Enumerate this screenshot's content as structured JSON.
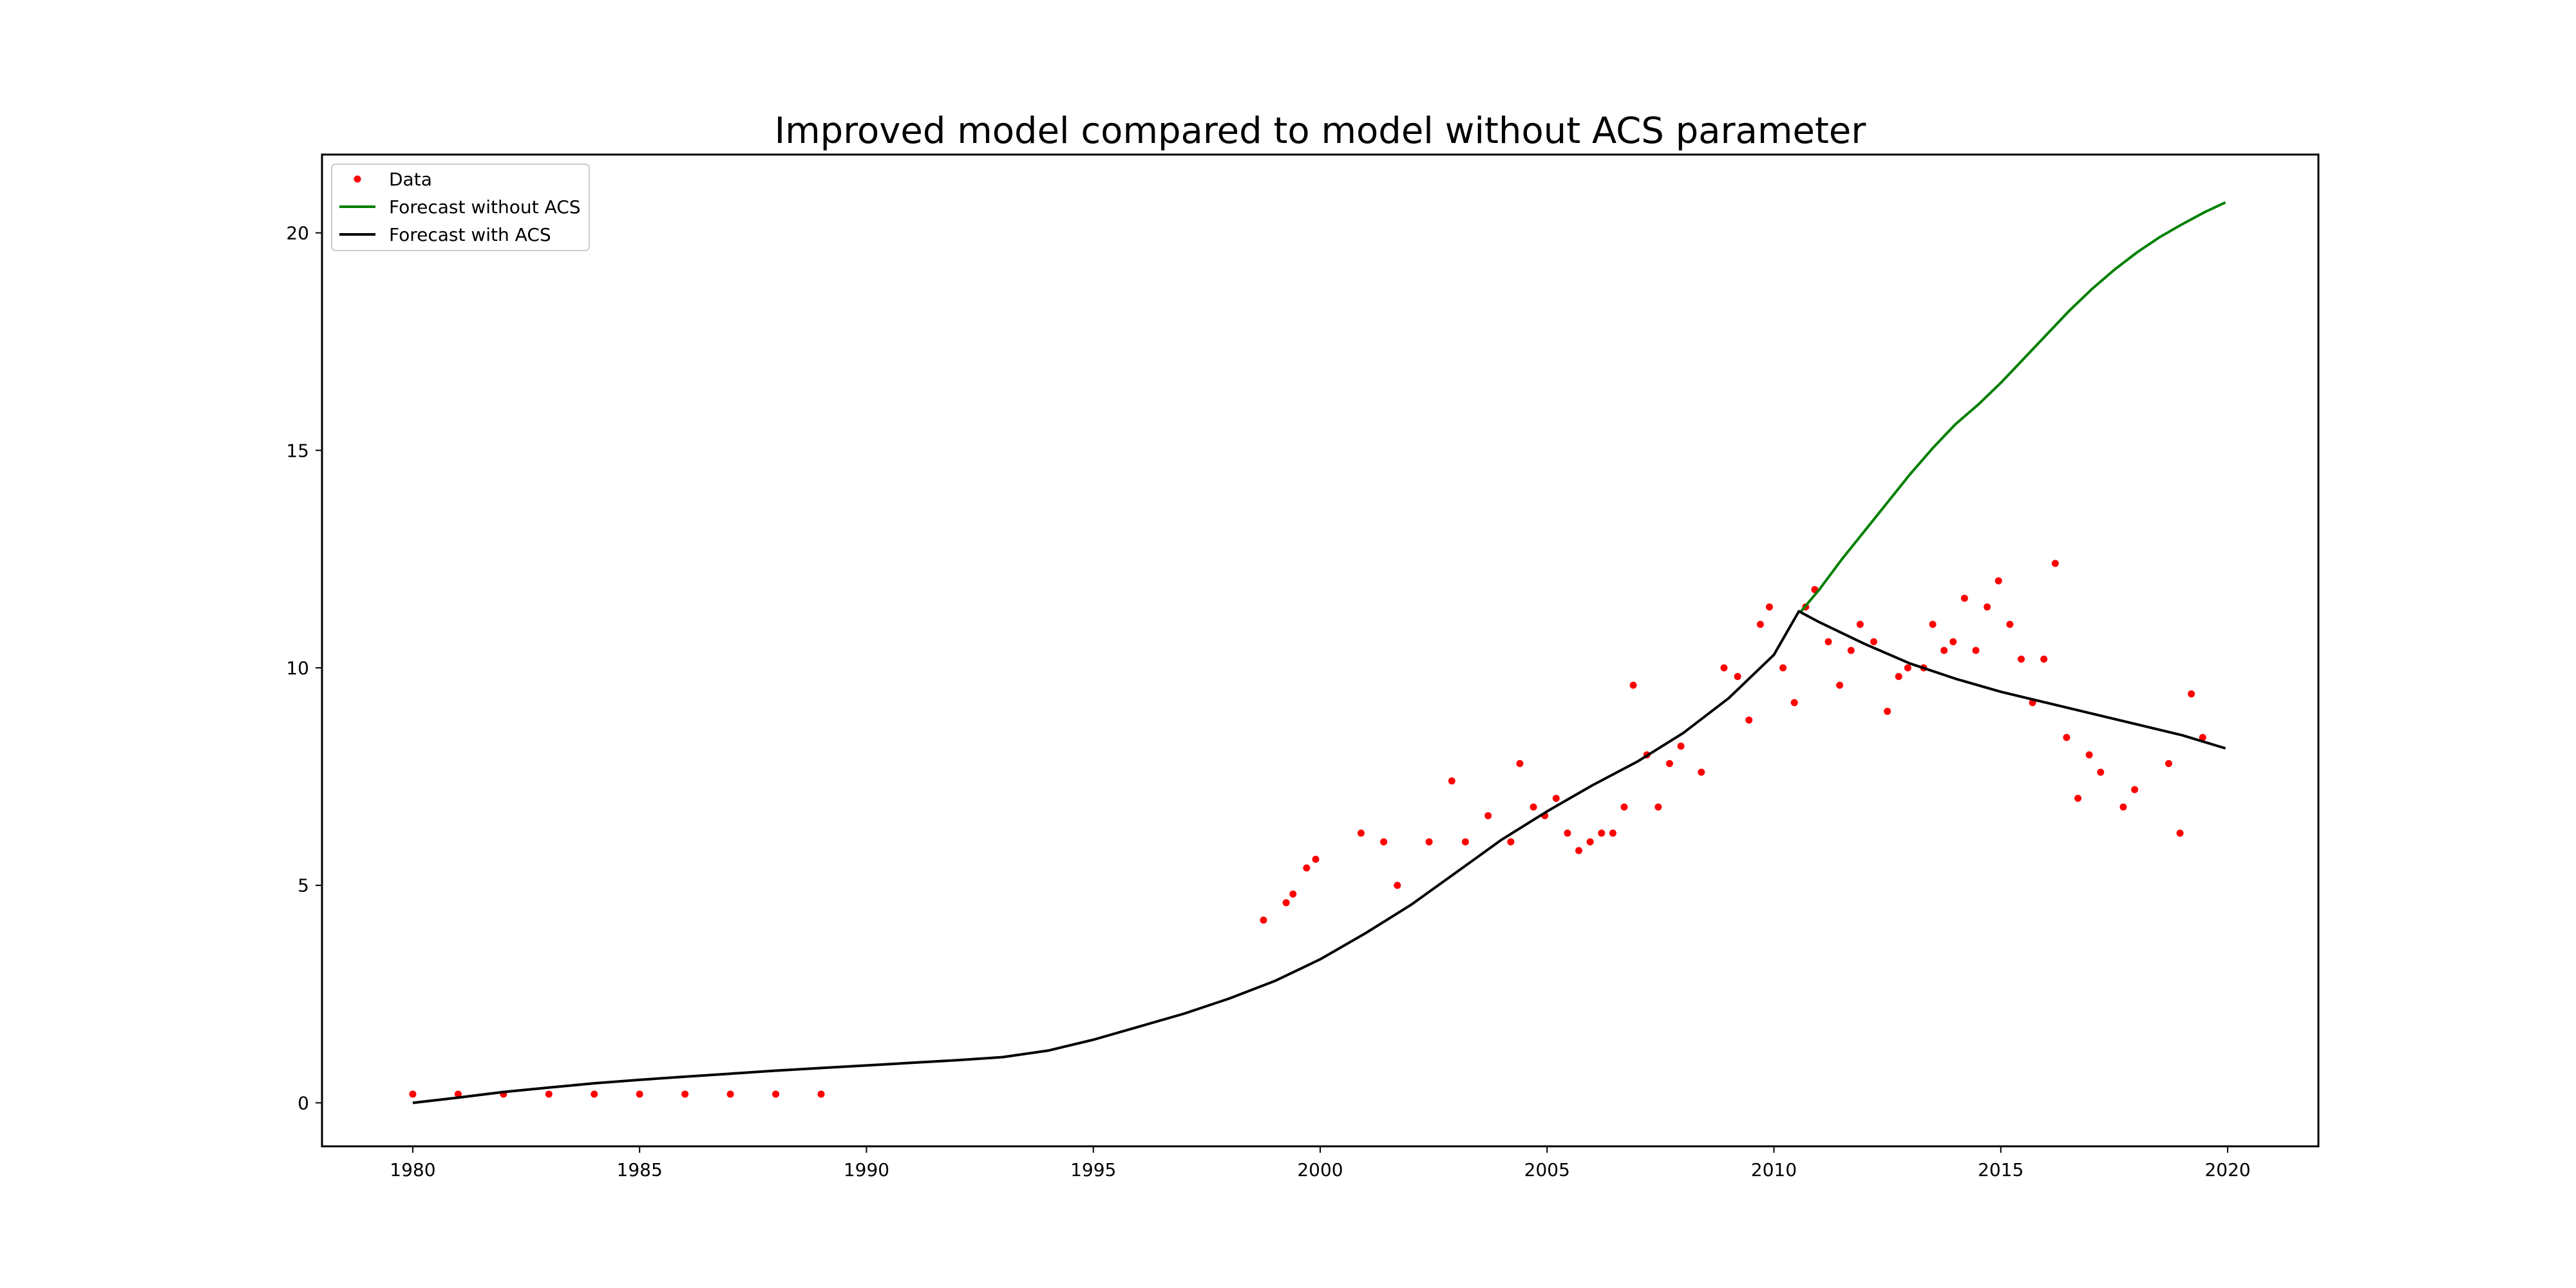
{
  "chart_data": {
    "type": "line",
    "title": "Improved model compared to model without ACS parameter",
    "xlabel": "",
    "ylabel": "",
    "xlim": [
      1978,
      2022
    ],
    "ylim": [
      -1,
      21.8
    ],
    "x_ticks": [
      1980,
      1985,
      1990,
      1995,
      2000,
      2005,
      2010,
      2015,
      2020
    ],
    "y_ticks": [
      0,
      5,
      10,
      15,
      20
    ],
    "grid": false,
    "legend_position": "top-left",
    "colors": {
      "data": "#ff0000",
      "without_acs": "#008000",
      "with_acs": "#000000"
    },
    "legend": [
      "Data",
      "Forecast without ACS",
      "Forecast with ACS"
    ],
    "series": [
      {
        "name": "Data",
        "style": "points",
        "color": "#ff0000",
        "points": [
          [
            1980,
            0.2
          ],
          [
            1981,
            0.2
          ],
          [
            1982,
            0.2
          ],
          [
            1983,
            0.2
          ],
          [
            1984,
            0.2
          ],
          [
            1985,
            0.2
          ],
          [
            1986,
            0.2
          ],
          [
            1987,
            0.2
          ],
          [
            1988,
            0.2
          ],
          [
            1989,
            0.2
          ],
          [
            1998.75,
            4.2
          ],
          [
            1999.25,
            4.6
          ],
          [
            1999.4,
            4.8
          ],
          [
            1999.7,
            5.4
          ],
          [
            1999.9,
            5.6
          ],
          [
            2000.9,
            6.2
          ],
          [
            2001.4,
            6.0
          ],
          [
            2001.7,
            5.0
          ],
          [
            2002.4,
            6.0
          ],
          [
            2002.9,
            7.4
          ],
          [
            2003.2,
            6.0
          ],
          [
            2003.7,
            6.6
          ],
          [
            2004.2,
            6.0
          ],
          [
            2004.4,
            7.8
          ],
          [
            2004.7,
            6.8
          ],
          [
            2004.95,
            6.6
          ],
          [
            2005.2,
            7.0
          ],
          [
            2005.45,
            6.2
          ],
          [
            2005.7,
            5.8
          ],
          [
            2005.95,
            6.0
          ],
          [
            2006.2,
            6.2
          ],
          [
            2006.45,
            6.2
          ],
          [
            2006.7,
            6.8
          ],
          [
            2006.9,
            9.6
          ],
          [
            2007.2,
            8.0
          ],
          [
            2007.45,
            6.8
          ],
          [
            2007.7,
            7.8
          ],
          [
            2007.95,
            8.2
          ],
          [
            2008.4,
            7.6
          ],
          [
            2008.9,
            10.0
          ],
          [
            2009.2,
            9.8
          ],
          [
            2009.45,
            8.8
          ],
          [
            2009.7,
            11.0
          ],
          [
            2009.9,
            11.4
          ],
          [
            2010.2,
            10.0
          ],
          [
            2010.45,
            9.2
          ],
          [
            2010.7,
            11.4
          ],
          [
            2010.9,
            11.8
          ],
          [
            2011.2,
            10.6
          ],
          [
            2011.45,
            9.6
          ],
          [
            2011.7,
            10.4
          ],
          [
            2011.9,
            11.0
          ],
          [
            2012.2,
            10.6
          ],
          [
            2012.5,
            9.0
          ],
          [
            2012.75,
            9.8
          ],
          [
            2012.95,
            10.0
          ],
          [
            2013.3,
            10.0
          ],
          [
            2013.5,
            11.0
          ],
          [
            2013.75,
            10.4
          ],
          [
            2013.95,
            10.6
          ],
          [
            2014.2,
            11.6
          ],
          [
            2014.45,
            10.4
          ],
          [
            2014.7,
            11.4
          ],
          [
            2014.95,
            12.0
          ],
          [
            2015.2,
            11.0
          ],
          [
            2015.45,
            10.2
          ],
          [
            2015.7,
            9.2
          ],
          [
            2015.95,
            10.2
          ],
          [
            2016.2,
            12.4
          ],
          [
            2016.45,
            8.4
          ],
          [
            2016.7,
            7.0
          ],
          [
            2016.95,
            8.0
          ],
          [
            2017.2,
            7.6
          ],
          [
            2017.7,
            6.8
          ],
          [
            2017.95,
            7.2
          ],
          [
            2018.7,
            7.8
          ],
          [
            2018.95,
            6.2
          ],
          [
            2019.2,
            9.4
          ],
          [
            2019.45,
            8.4
          ]
        ]
      },
      {
        "name": "Forecast without ACS",
        "style": "line",
        "color": "#008000",
        "points": [
          [
            2010.6,
            11.3
          ],
          [
            2011.0,
            11.8
          ],
          [
            2011.5,
            12.5
          ],
          [
            2012.0,
            13.15
          ],
          [
            2012.5,
            13.8
          ],
          [
            2013.0,
            14.45
          ],
          [
            2013.5,
            15.05
          ],
          [
            2014.0,
            15.6
          ],
          [
            2014.5,
            16.05
          ],
          [
            2015.0,
            16.55
          ],
          [
            2015.5,
            17.1
          ],
          [
            2016.0,
            17.65
          ],
          [
            2016.5,
            18.2
          ],
          [
            2017.0,
            18.7
          ],
          [
            2017.5,
            19.15
          ],
          [
            2018.0,
            19.55
          ],
          [
            2018.5,
            19.9
          ],
          [
            2019.0,
            20.2
          ],
          [
            2019.5,
            20.48
          ],
          [
            2019.95,
            20.7
          ]
        ]
      },
      {
        "name": "Forecast with ACS",
        "style": "line",
        "color": "#000000",
        "points": [
          [
            1980,
            0.0
          ],
          [
            1981,
            0.12
          ],
          [
            1982,
            0.25
          ],
          [
            1983,
            0.35
          ],
          [
            1984,
            0.45
          ],
          [
            1985,
            0.53
          ],
          [
            1986,
            0.6
          ],
          [
            1987,
            0.67
          ],
          [
            1988,
            0.74
          ],
          [
            1989,
            0.8
          ],
          [
            1990,
            0.86
          ],
          [
            1991,
            0.92
          ],
          [
            1992,
            0.98
          ],
          [
            1993,
            1.05
          ],
          [
            1994,
            1.2
          ],
          [
            1995,
            1.45
          ],
          [
            1996,
            1.75
          ],
          [
            1997,
            2.05
          ],
          [
            1998,
            2.4
          ],
          [
            1999,
            2.8
          ],
          [
            2000,
            3.3
          ],
          [
            2001,
            3.9
          ],
          [
            2002,
            4.55
          ],
          [
            2003,
            5.3
          ],
          [
            2004,
            6.05
          ],
          [
            2005,
            6.7
          ],
          [
            2006,
            7.3
          ],
          [
            2007,
            7.85
          ],
          [
            2008,
            8.5
          ],
          [
            2009,
            9.3
          ],
          [
            2010,
            10.3
          ],
          [
            2010.55,
            11.3
          ],
          [
            2011,
            11.05
          ],
          [
            2012,
            10.55
          ],
          [
            2013,
            10.1
          ],
          [
            2014,
            9.75
          ],
          [
            2015,
            9.45
          ],
          [
            2016,
            9.2
          ],
          [
            2017,
            8.95
          ],
          [
            2018,
            8.7
          ],
          [
            2019,
            8.45
          ],
          [
            2019.95,
            8.15
          ]
        ]
      }
    ]
  }
}
